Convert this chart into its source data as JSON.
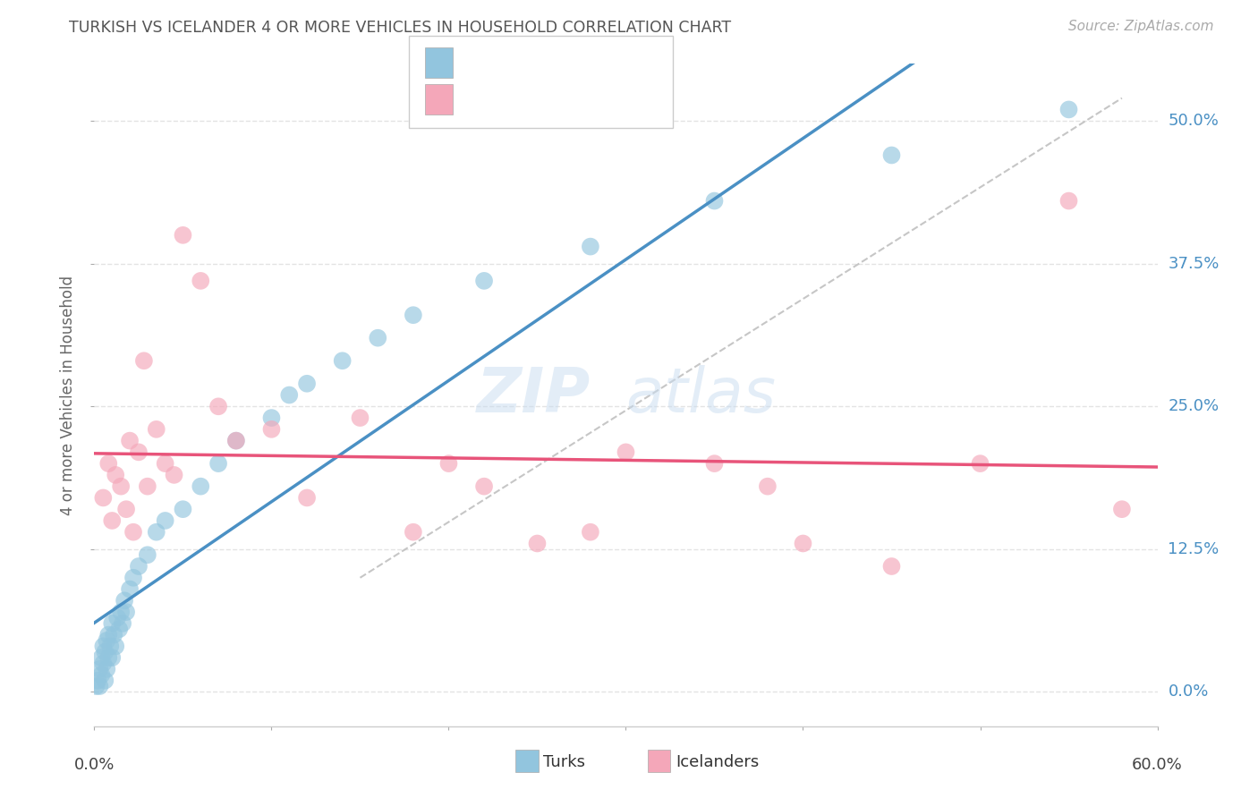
{
  "title": "TURKISH VS ICELANDER 4 OR MORE VEHICLES IN HOUSEHOLD CORRELATION CHART",
  "source": "Source: ZipAtlas.com",
  "ylabel": "4 or more Vehicles in Household",
  "xlim": [
    0.0,
    60.0
  ],
  "ylim": [
    -3.0,
    55.0
  ],
  "ytick_labels": [
    "0.0%",
    "12.5%",
    "25.0%",
    "37.5%",
    "50.0%"
  ],
  "ytick_values": [
    0.0,
    12.5,
    25.0,
    37.5,
    50.0
  ],
  "xtick_labels": [
    "0.0%",
    "60.0%"
  ],
  "turks_color": "#92C5DE",
  "icelanders_color": "#F4A7B9",
  "turks_line_color": "#4A90C4",
  "icelanders_line_color": "#E8547A",
  "ref_line_color": "#C0C0C0",
  "background_color": "#FFFFFF",
  "grid_color": "#DDDDDD",
  "title_color": "#555555",
  "watermark_color": "#C8DCF0",
  "label_color": "#4A90C4",
  "turks_x": [
    0.1,
    0.2,
    0.3,
    0.3,
    0.4,
    0.4,
    0.5,
    0.5,
    0.6,
    0.6,
    0.7,
    0.7,
    0.8,
    0.8,
    0.9,
    1.0,
    1.0,
    1.1,
    1.2,
    1.3,
    1.4,
    1.5,
    1.6,
    1.7,
    1.8,
    2.0,
    2.2,
    2.5,
    3.0,
    3.5,
    4.0,
    5.0,
    6.0,
    7.0,
    8.0,
    10.0,
    11.0,
    12.0,
    14.0,
    16.0,
    18.0,
    22.0,
    28.0,
    35.0,
    45.0,
    55.0
  ],
  "turks_y": [
    0.5,
    1.0,
    2.0,
    0.5,
    1.5,
    3.0,
    2.5,
    4.0,
    1.0,
    3.5,
    2.0,
    4.5,
    3.0,
    5.0,
    4.0,
    3.0,
    6.0,
    5.0,
    4.0,
    6.5,
    5.5,
    7.0,
    6.0,
    8.0,
    7.0,
    9.0,
    10.0,
    11.0,
    12.0,
    14.0,
    15.0,
    16.0,
    18.0,
    20.0,
    22.0,
    24.0,
    26.0,
    27.0,
    29.0,
    31.0,
    33.0,
    36.0,
    39.0,
    43.0,
    47.0,
    51.0
  ],
  "icelanders_x": [
    0.5,
    0.8,
    1.0,
    1.2,
    1.5,
    1.8,
    2.0,
    2.2,
    2.5,
    3.0,
    3.5,
    4.0,
    4.5,
    5.0,
    6.0,
    7.0,
    8.0,
    10.0,
    12.0,
    15.0,
    18.0,
    20.0,
    22.0,
    25.0,
    28.0,
    30.0,
    35.0,
    38.0,
    40.0,
    45.0,
    50.0,
    55.0,
    58.0,
    2.8
  ],
  "icelanders_y": [
    17.0,
    20.0,
    15.0,
    19.0,
    18.0,
    16.0,
    22.0,
    14.0,
    21.0,
    18.0,
    23.0,
    20.0,
    19.0,
    40.0,
    36.0,
    25.0,
    22.0,
    23.0,
    17.0,
    24.0,
    14.0,
    20.0,
    18.0,
    13.0,
    14.0,
    21.0,
    20.0,
    18.0,
    13.0,
    11.0,
    20.0,
    43.0,
    16.0,
    29.0
  ]
}
